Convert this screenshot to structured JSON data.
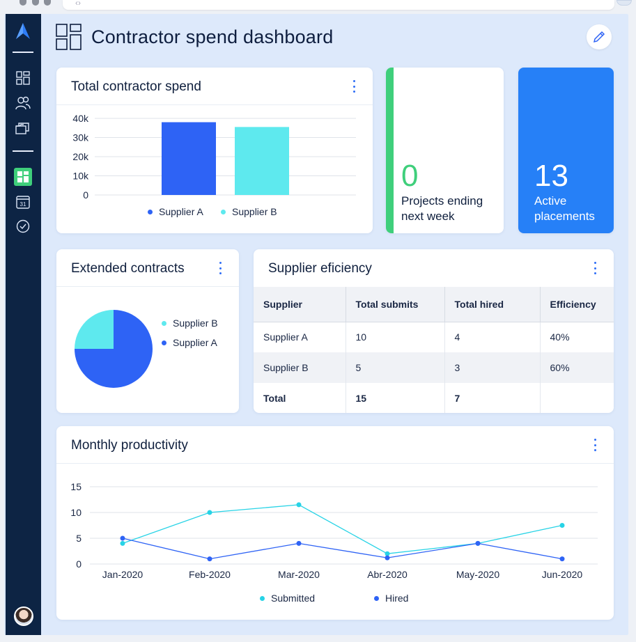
{
  "header": {
    "title": "Contractor spend dashboard"
  },
  "colors": {
    "sidebar": "#0d2444",
    "supplier_a": "#2e63f5",
    "supplier_b": "#5ee9ee",
    "green": "#3fcf7b",
    "blue_card": "#2680f7"
  },
  "sidebar": {
    "items": [
      "logo-icon",
      "grid-icon",
      "users-icon",
      "folders-icon",
      "dashboard-icon",
      "calendar-icon",
      "check-circle-icon"
    ],
    "calendar_day": "31"
  },
  "spend_card": {
    "title": "Total contractor spend",
    "chart_data": {
      "type": "bar",
      "categories": [
        "Supplier A",
        "Supplier B"
      ],
      "values": [
        38000,
        35500
      ],
      "yticks": [
        "0",
        "10k",
        "20k",
        "30k",
        "40k"
      ],
      "ylim": [
        0,
        40000
      ],
      "colors": [
        "#2e63f5",
        "#5ee9ee"
      ],
      "legend": [
        "Supplier A",
        "Supplier B"
      ]
    }
  },
  "projects_card": {
    "value": "0",
    "label_line1": "Projects ending",
    "label_line2": "next week"
  },
  "placements_card": {
    "value": "13",
    "label_line1": "Active",
    "label_line2": "placements"
  },
  "contracts_card": {
    "title": "Extended contracts",
    "chart_data": {
      "type": "pie",
      "slices": [
        {
          "name": "Supplier B",
          "value": 25,
          "color": "#5ee9ee"
        },
        {
          "name": "Supplier A",
          "value": 75,
          "color": "#2e63f5"
        }
      ]
    }
  },
  "efficiency_card": {
    "title": "Supplier eficiency",
    "columns": [
      "Supplier",
      "Total submits",
      "Total hired",
      "Efficiency"
    ],
    "rows": [
      [
        "Supplier A",
        "10",
        "4",
        "40%"
      ],
      [
        "Supplier B",
        "5",
        "3",
        "60%"
      ]
    ],
    "total": [
      "Total",
      "15",
      "7",
      ""
    ]
  },
  "productivity_card": {
    "title": "Monthly productivity",
    "chart_data": {
      "type": "line",
      "x": [
        "Jan-2020",
        "Feb-2020",
        "Mar-2020",
        "Abr-2020",
        "May-2020",
        "Jun-2020"
      ],
      "yticks": [
        "0",
        "5",
        "10",
        "15"
      ],
      "ylim": [
        0,
        15
      ],
      "series": [
        {
          "name": "Submitted",
          "color": "#27d3e6",
          "values": [
            4,
            10,
            11.5,
            2,
            4,
            7.5
          ]
        },
        {
          "name": "Hired",
          "color": "#2e63f5",
          "values": [
            5,
            1,
            4,
            1.2,
            4,
            1
          ]
        }
      ]
    }
  }
}
